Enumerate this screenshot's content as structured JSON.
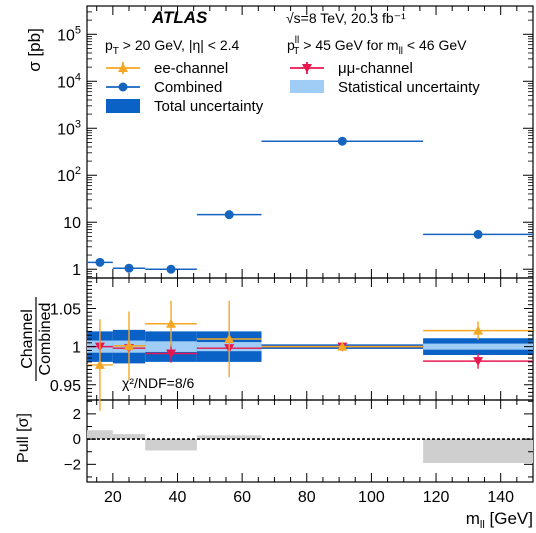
{
  "figure": {
    "atlas_label": "ATLAS",
    "energy_label": "√s=8 TeV, 20.3 fb⁻¹",
    "cuts_left": "pT > 20 GeV, |η| < 2.4",
    "cuts_right": "pTll > 45 GeV for mll < 46 GeV",
    "chi2_label": "χ²/NDF=8/6"
  },
  "legend": {
    "ee": "ee-channel",
    "mumu": "μμ-channel",
    "combined": "Combined",
    "stat": "Statistical uncertainty",
    "total": "Total uncertainty"
  },
  "colors": {
    "ee": "#f5a623",
    "mumu": "#e8174f",
    "combined": "#1565c0",
    "stat_band": "#9fcdf5",
    "total_band": "#0a62c7",
    "pull_fill": "#cfcfcf"
  },
  "chart_data": [
    {
      "type": "scatter",
      "panel": "cross-section",
      "ylabel": "σ [pb]",
      "yscale": "log",
      "ylim": [
        0.65,
        400000
      ],
      "xlim": [
        12,
        150
      ],
      "yticks": [
        1,
        10,
        100,
        1000,
        10000,
        100000
      ],
      "ytick_labels": [
        "1",
        "10",
        "10²",
        "10³",
        "10⁴",
        "10⁵"
      ],
      "legend_position": "top-left",
      "series": [
        {
          "name": "Combined",
          "bins": [
            [
              12,
              20
            ],
            [
              20,
              30
            ],
            [
              30,
              46
            ],
            [
              46,
              66
            ],
            [
              66,
              116
            ],
            [
              116,
              150
            ]
          ],
          "x": [
            16,
            25,
            38,
            56,
            91,
            133
          ],
          "y": [
            1.4,
            1.05,
            1.0,
            14.5,
            530,
            5.5
          ]
        }
      ]
    },
    {
      "type": "scatter",
      "panel": "ratio",
      "ylabel": "Channel / Combined",
      "ylim": [
        0.93,
        1.09
      ],
      "yticks": [
        0.95,
        1,
        1.05
      ],
      "ytick_labels": [
        "0.95",
        "1",
        "1.05"
      ],
      "series": [
        {
          "name": "ee-channel",
          "x": [
            16,
            25,
            38,
            56,
            91,
            133
          ],
          "y": [
            0.976,
            1.001,
            1.03,
            1.01,
            1.0,
            1.021
          ],
          "err": [
            0.06,
            0.045,
            0.03,
            0.05,
            0.004,
            0.012
          ]
        },
        {
          "name": "μμ-channel",
          "x": [
            16,
            25,
            38,
            56,
            91,
            133
          ],
          "y": [
            1.0,
            0.998,
            0.991,
            0.998,
            1.0,
            0.981
          ],
          "err": [
            0.018,
            0.012,
            0.012,
            0.018,
            0.002,
            0.01
          ]
        },
        {
          "name": "Total uncertainty",
          "bins": [
            [
              12,
              20
            ],
            [
              20,
              30
            ],
            [
              30,
              46
            ],
            [
              46,
              66
            ],
            [
              66,
              116
            ],
            [
              116,
              150
            ]
          ],
          "half_width": [
            0.02,
            0.022,
            0.02,
            0.02,
            0.003,
            0.011
          ]
        },
        {
          "name": "Statistical uncertainty",
          "bins": [
            [
              12,
              20
            ],
            [
              20,
              30
            ],
            [
              30,
              46
            ],
            [
              46,
              66
            ],
            [
              66,
              116
            ],
            [
              116,
              150
            ]
          ],
          "half_width": [
            0.008,
            0.008,
            0.007,
            0.006,
            0.001,
            0.004
          ]
        }
      ]
    },
    {
      "type": "bar",
      "panel": "pull",
      "ylabel": "Pull [σ]",
      "xlabel": "mll [GeV]",
      "ylim": [
        -3.4,
        3.1
      ],
      "yticks": [
        -2,
        0,
        2
      ],
      "ytick_labels": [
        "−2",
        "0",
        "2"
      ],
      "xticks": [
        20,
        40,
        60,
        80,
        100,
        120,
        140
      ],
      "bins": [
        [
          12,
          20
        ],
        [
          20,
          30
        ],
        [
          30,
          46
        ],
        [
          46,
          66
        ],
        [
          66,
          116
        ],
        [
          116,
          150
        ]
      ],
      "values": [
        0.7,
        0.4,
        -0.9,
        0.3,
        0.0,
        -1.9
      ]
    }
  ]
}
